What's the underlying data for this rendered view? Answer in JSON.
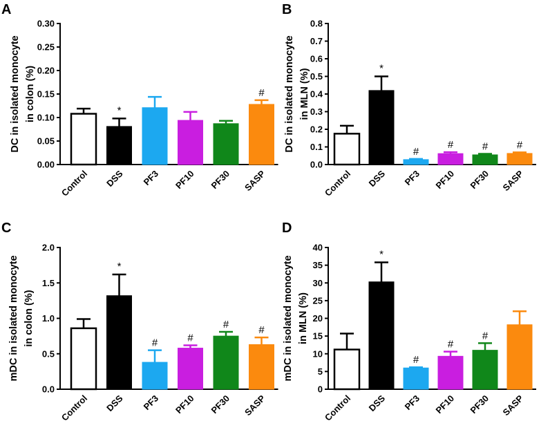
{
  "colors": {
    "Control": "#ffffff",
    "DSS": "#000000",
    "PF3": "#1ca8f0",
    "PF10": "#c91ee0",
    "PF30": "#10871a",
    "SASP": "#fb8a0e"
  },
  "chart_data": [
    {
      "panel": "A",
      "type": "bar",
      "ylabel": [
        "DC in isolated monocyte",
        "in colon (%)"
      ],
      "ylim": [
        0,
        0.3
      ],
      "yticks": [
        "0.00",
        "0.05",
        "0.10",
        "0.15",
        "0.20",
        "0.25",
        "0.30"
      ],
      "categories": [
        "Control",
        "DSS",
        "PF3",
        "PF10",
        "PF30",
        "SASP"
      ],
      "values": [
        0.108,
        0.081,
        0.121,
        0.094,
        0.087,
        0.128
      ],
      "errors": [
        0.011,
        0.017,
        0.023,
        0.018,
        0.006,
        0.009
      ],
      "annotations": [
        "",
        "*",
        "",
        "",
        "",
        "#"
      ]
    },
    {
      "panel": "B",
      "type": "bar",
      "ylabel": [
        "DC in isolated monocyte",
        "in MLN (%)"
      ],
      "ylim": [
        0,
        0.8
      ],
      "yticks": [
        "0.0",
        "0.1",
        "0.2",
        "0.3",
        "0.4",
        "0.5",
        "0.6",
        "0.7",
        "0.8"
      ],
      "categories": [
        "Control",
        "DSS",
        "PF3",
        "PF10",
        "PF30",
        "SASP"
      ],
      "values": [
        0.175,
        0.42,
        0.028,
        0.062,
        0.055,
        0.063
      ],
      "errors": [
        0.045,
        0.08,
        0.004,
        0.008,
        0.006,
        0.006
      ],
      "annotations": [
        "",
        "*",
        "#",
        "#",
        "#",
        "#"
      ]
    },
    {
      "panel": "C",
      "type": "bar",
      "ylabel": [
        "mDC in isolated monocyte",
        "in colon (%)"
      ],
      "ylim": [
        0,
        2.0
      ],
      "yticks": [
        "0.0",
        "0.5",
        "1.0",
        "1.5",
        "2.0"
      ],
      "categories": [
        "Control",
        "DSS",
        "PF3",
        "PF10",
        "PF30",
        "SASP"
      ],
      "values": [
        0.86,
        1.32,
        0.38,
        0.58,
        0.75,
        0.63
      ],
      "errors": [
        0.13,
        0.3,
        0.17,
        0.04,
        0.06,
        0.1
      ],
      "annotations": [
        "",
        "*",
        "#",
        "#",
        "#",
        "#"
      ]
    },
    {
      "panel": "D",
      "type": "bar",
      "ylabel": [
        "mDC in isolated monocyte",
        "in MLN (%)"
      ],
      "ylim": [
        0,
        40
      ],
      "yticks": [
        "0",
        "5",
        "10",
        "15",
        "20",
        "25",
        "30",
        "35",
        "40"
      ],
      "categories": [
        "Control",
        "DSS",
        "PF3",
        "PF10",
        "PF30",
        "SASP"
      ],
      "values": [
        11.2,
        30.3,
        6.0,
        9.3,
        11.0,
        18.2
      ],
      "errors": [
        4.5,
        5.5,
        0.2,
        1.3,
        2.0,
        3.8
      ],
      "annotations": [
        "",
        "*",
        "#",
        "#",
        "#",
        ""
      ]
    }
  ]
}
